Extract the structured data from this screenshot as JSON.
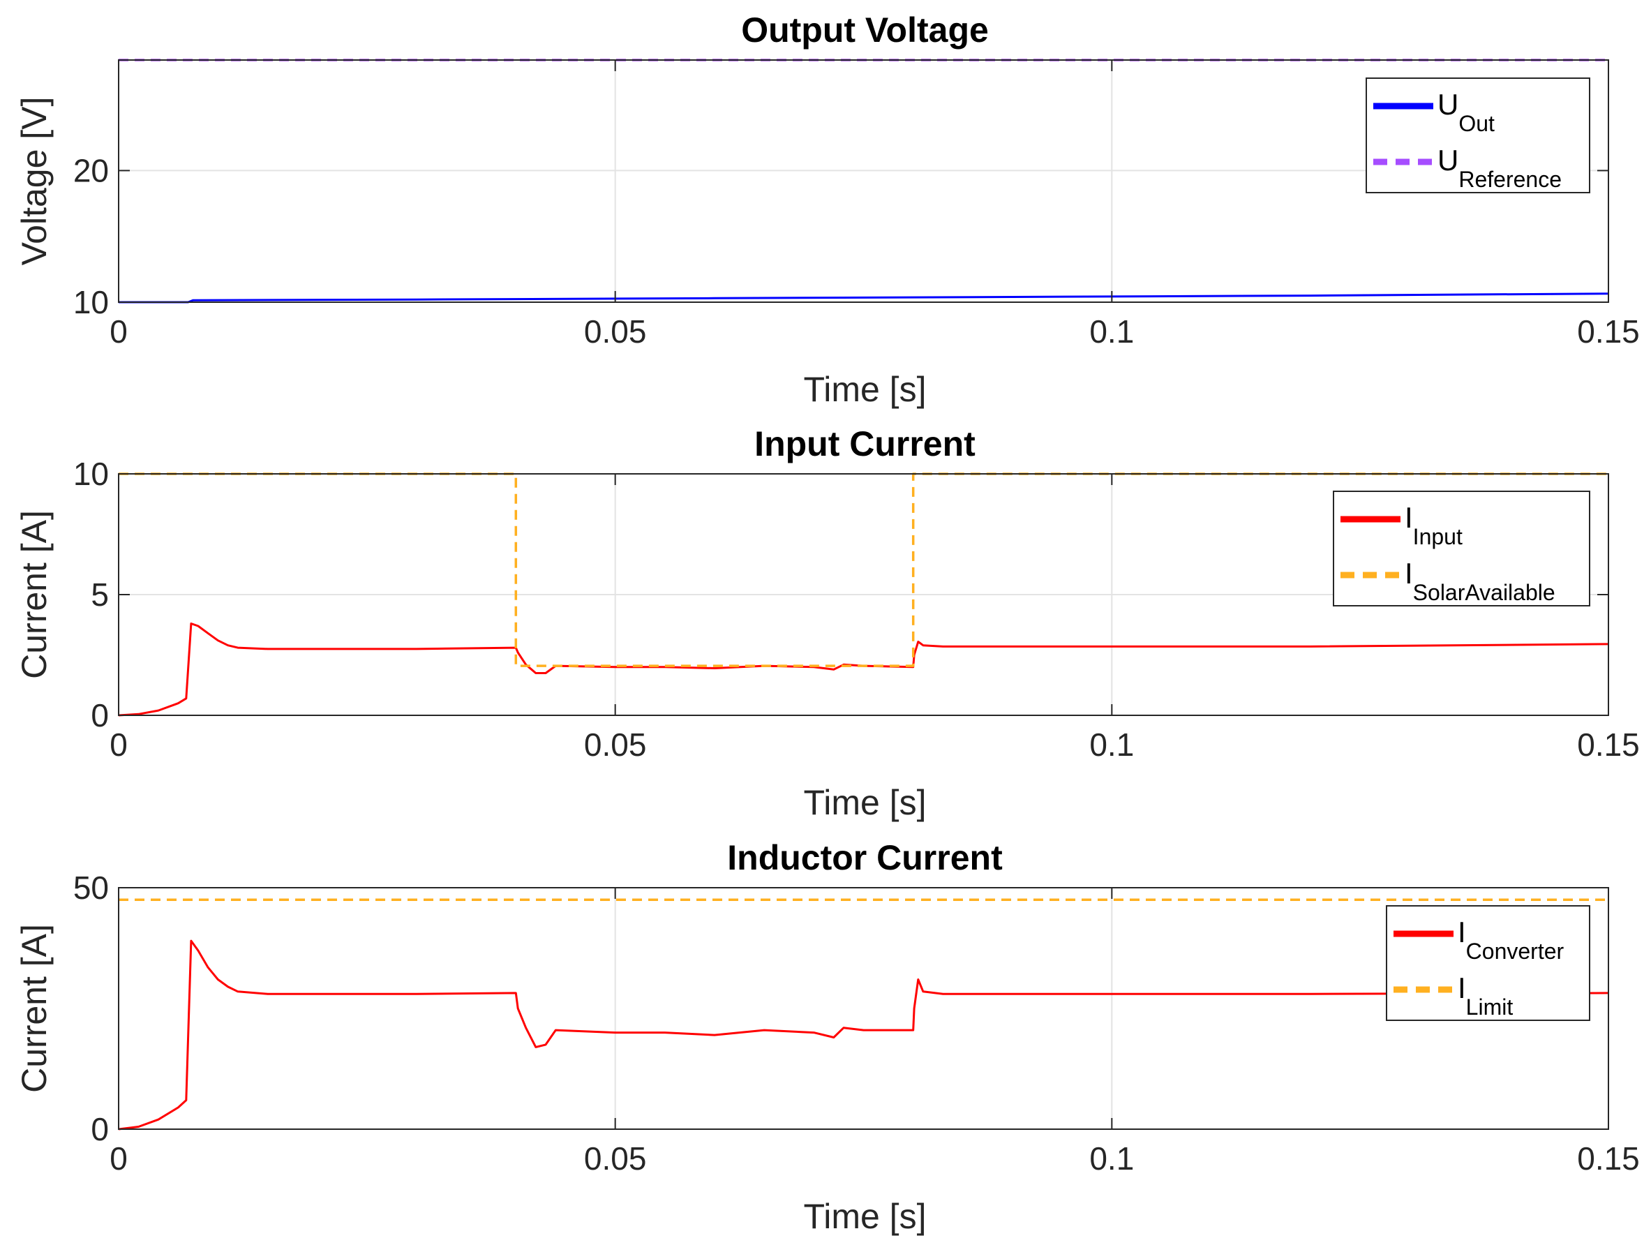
{
  "chart_data": [
    {
      "type": "line",
      "title": "Output Voltage",
      "xlabel": "Time [s]",
      "ylabel": "Voltage [V]",
      "xlim": [
        0,
        0.15
      ],
      "ylim": [
        10,
        28.4
      ],
      "xticks": [
        "0",
        "0.05",
        "0.1",
        "0.15"
      ],
      "xtick_values": [
        0,
        0.05,
        0.1,
        0.15
      ],
      "yticks": [
        "10",
        "20"
      ],
      "ytick_values": [
        10,
        20
      ],
      "grid": true,
      "legend_position": "top-right",
      "series": [
        {
          "name_main": "U",
          "name_sub": "Out",
          "color": "#0000ff",
          "style": "solid",
          "x": [
            0,
            0.007,
            0.0075,
            0.03,
            0.06,
            0.09,
            0.12,
            0.15
          ],
          "y": [
            10.0,
            10.0,
            10.15,
            10.2,
            10.3,
            10.4,
            10.5,
            10.65
          ]
        },
        {
          "name_main": "U",
          "name_sub": "Reference",
          "color": "#a64dff",
          "style": "dashed",
          "x": [
            0,
            0.15
          ],
          "y": [
            28.4,
            28.4
          ]
        }
      ]
    },
    {
      "type": "line",
      "title": "Input Current",
      "xlabel": "Time [s]",
      "ylabel": "Current [A]",
      "xlim": [
        0,
        0.15
      ],
      "ylim": [
        0,
        10
      ],
      "xticks": [
        "0",
        "0.05",
        "0.1",
        "0.15"
      ],
      "xtick_values": [
        0,
        0.05,
        0.1,
        0.15
      ],
      "yticks": [
        "0",
        "5",
        "10"
      ],
      "ytick_values": [
        0,
        5,
        10
      ],
      "grid": true,
      "legend_position": "top-right",
      "series": [
        {
          "name_main": "I",
          "name_sub": "Input",
          "color": "#ff0000",
          "style": "solid",
          "x": [
            0,
            0.002,
            0.004,
            0.006,
            0.0068,
            0.0073,
            0.008,
            0.009,
            0.01,
            0.011,
            0.012,
            0.015,
            0.02,
            0.03,
            0.04,
            0.0402,
            0.041,
            0.042,
            0.043,
            0.044,
            0.05,
            0.055,
            0.06,
            0.065,
            0.07,
            0.072,
            0.073,
            0.075,
            0.08,
            0.0801,
            0.0805,
            0.081,
            0.083,
            0.09,
            0.1,
            0.12,
            0.15
          ],
          "y": [
            0,
            0.05,
            0.2,
            0.5,
            0.7,
            3.8,
            3.7,
            3.4,
            3.1,
            2.9,
            2.8,
            2.75,
            2.75,
            2.75,
            2.8,
            2.6,
            2.1,
            1.75,
            1.75,
            2.05,
            2.0,
            2.0,
            1.95,
            2.05,
            2.0,
            1.9,
            2.1,
            2.05,
            2.0,
            2.5,
            3.05,
            2.9,
            2.85,
            2.85,
            2.85,
            2.85,
            2.95
          ]
        },
        {
          "name_main": "I",
          "name_sub": "SolarAvailable",
          "color": "#ffb020",
          "style": "dashed",
          "x": [
            0,
            0.04,
            0.04,
            0.08,
            0.08,
            0.15
          ],
          "y": [
            10,
            10,
            2.05,
            2.05,
            10,
            10
          ]
        }
      ]
    },
    {
      "type": "line",
      "title": "Inductor Current",
      "xlabel": "Time [s]",
      "ylabel": "Current [A]",
      "xlim": [
        0,
        0.15
      ],
      "ylim": [
        0,
        50
      ],
      "xticks": [
        "0",
        "0.05",
        "0.1",
        "0.15"
      ],
      "xtick_values": [
        0,
        0.05,
        0.1,
        0.15
      ],
      "yticks": [
        "0",
        "50"
      ],
      "ytick_values": [
        0,
        50
      ],
      "grid": true,
      "legend_position": "top-right",
      "series": [
        {
          "name_main": "I",
          "name_sub": "Converter",
          "color": "#ff0000",
          "style": "solid",
          "x": [
            0,
            0.002,
            0.004,
            0.006,
            0.0068,
            0.0073,
            0.008,
            0.009,
            0.01,
            0.011,
            0.012,
            0.015,
            0.02,
            0.03,
            0.04,
            0.0402,
            0.041,
            0.042,
            0.043,
            0.044,
            0.05,
            0.055,
            0.06,
            0.065,
            0.07,
            0.072,
            0.073,
            0.075,
            0.08,
            0.0801,
            0.0805,
            0.081,
            0.083,
            0.09,
            0.1,
            0.12,
            0.15
          ],
          "y": [
            0,
            0.5,
            2,
            4.5,
            6,
            39,
            37,
            33.5,
            31,
            29.5,
            28.5,
            28,
            28,
            28,
            28.2,
            25,
            21,
            17,
            17.5,
            20.5,
            20,
            20,
            19.5,
            20.5,
            20,
            19,
            21,
            20.5,
            20.5,
            25,
            31,
            28.5,
            28,
            28,
            28,
            28,
            28.2
          ]
        },
        {
          "name_main": "I",
          "name_sub": "Limit",
          "color": "#ffb020",
          "style": "dashed",
          "x": [
            0,
            0.15
          ],
          "y": [
            47.5,
            47.5
          ]
        }
      ]
    }
  ]
}
